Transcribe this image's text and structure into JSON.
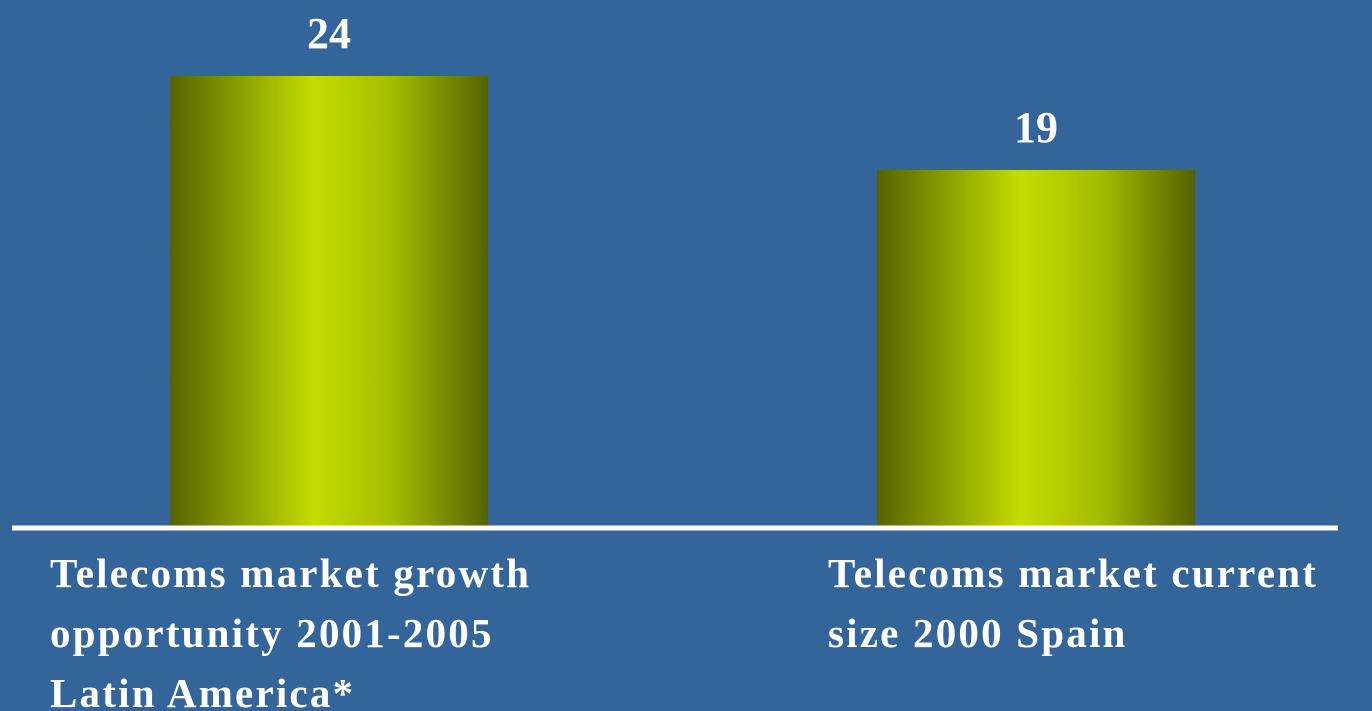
{
  "chart_data": {
    "type": "bar",
    "categories": [
      [
        "Telecoms market growth",
        "opportunity 2001-2005",
        "Latin America*"
      ],
      [
        "Telecoms market current",
        "size 2000 Spain"
      ]
    ],
    "values": [
      24,
      19
    ],
    "color": "#c4dc00"
  }
}
